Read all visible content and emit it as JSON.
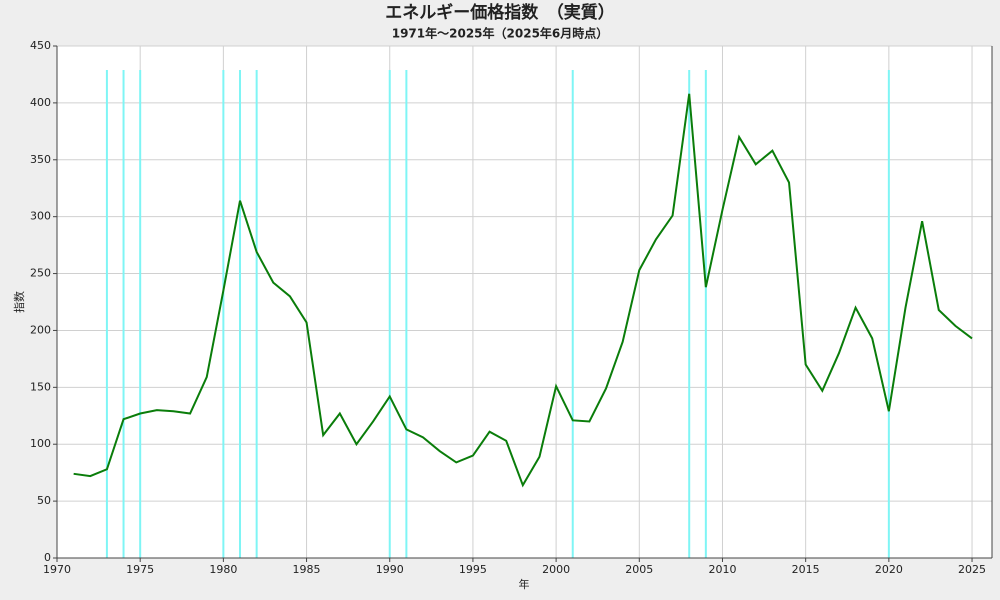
{
  "chart_data": {
    "type": "line",
    "title": "エネルギー価格指数　（実質）",
    "subtitle": "1971年～2025年（2025年6月時点）",
    "x_label": "年",
    "y_label": "指数",
    "x": [
      1971,
      1972,
      1973,
      1974,
      1975,
      1976,
      1977,
      1978,
      1979,
      1980,
      1981,
      1982,
      1983,
      1984,
      1985,
      1986,
      1987,
      1988,
      1989,
      1990,
      1991,
      1992,
      1993,
      1994,
      1995,
      1996,
      1997,
      1998,
      1999,
      2000,
      2001,
      2002,
      2003,
      2004,
      2005,
      2006,
      2007,
      2008,
      2009,
      2010,
      2011,
      2012,
      2013,
      2014,
      2015,
      2016,
      2017,
      2018,
      2019,
      2020,
      2021,
      2022,
      2023,
      2024,
      2025
    ],
    "series": [
      {
        "color": "#0a7d0a",
        "values": [
          74,
          72,
          78,
          122,
          127,
          130,
          129,
          127,
          159,
          235,
          314,
          269,
          242,
          230,
          207,
          108,
          127,
          100,
          120,
          142,
          113,
          106,
          94,
          84,
          90,
          111,
          103,
          64,
          89,
          151,
          121,
          120,
          149,
          190,
          253,
          280,
          301,
          408,
          238,
          306,
          370,
          346,
          358,
          330,
          170,
          147,
          180,
          220,
          193,
          129,
          220,
          296,
          218,
          204,
          193
        ]
      }
    ],
    "highlight_years": [
      1973,
      1974,
      1975,
      1980,
      1981,
      1982,
      1990,
      1991,
      2001,
      2008,
      2009,
      2020
    ],
    "highlight_color": "#7ff5f5",
    "xlim": [
      1970,
      2026.2
    ],
    "ylim": [
      0,
      450
    ],
    "xticks": [
      1970,
      1975,
      1980,
      1985,
      1990,
      1995,
      2000,
      2005,
      2010,
      2015,
      2020,
      2025
    ],
    "yticks": [
      0,
      50,
      100,
      150,
      200,
      250,
      300,
      350,
      400,
      450
    ],
    "grid": true
  }
}
